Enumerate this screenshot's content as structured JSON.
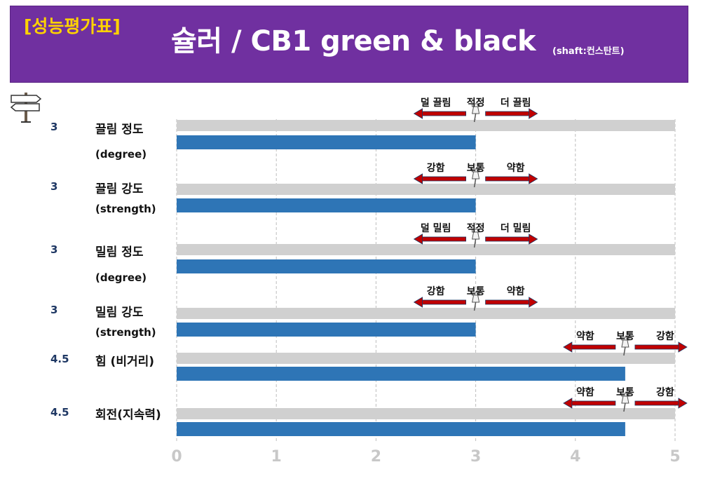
{
  "header": {
    "tag": "[성능평가표]",
    "title": "슐러 / CB1 green & black",
    "subtitle": "(shaft:컨스탄트)"
  },
  "colors": {
    "header_bg": "#7030a0",
    "tag": "#ffd200",
    "bar": "#2e75b6",
    "track": "#d0d0d0",
    "arrow": "#c00000",
    "value_label": "#1f3864"
  },
  "icons": {
    "corner": "signpost-icon",
    "marker": "pushpin-icon"
  },
  "chart_data": {
    "type": "bar",
    "orientation": "horizontal",
    "xlim": [
      0,
      5
    ],
    "ticks": [
      "0",
      "1",
      "2",
      "3",
      "4",
      "5"
    ],
    "grid": true,
    "rows": [
      {
        "value": 3,
        "value_label": "3",
        "label": "끌림 정도",
        "sublabel": "(degree)",
        "scale": {
          "left": "덜 끌림",
          "mid": "적정",
          "right": "더 끌림"
        },
        "marker": 3
      },
      {
        "value": 3,
        "value_label": "3",
        "label": "끌림 강도",
        "sublabel": "(strength)",
        "scale": {
          "left": "강함",
          "mid": "보통",
          "right": "약함"
        },
        "marker": 3
      },
      {
        "value": 3,
        "value_label": "3",
        "label": "밀림 정도",
        "sublabel": "(degree)",
        "scale": {
          "left": "덜 밀림",
          "mid": "적정",
          "right": "더 밀림"
        },
        "marker": 3
      },
      {
        "value": 3,
        "value_label": "3",
        "label": "밀림 강도",
        "sublabel": "(strength)",
        "scale": {
          "left": "강함",
          "mid": "보통",
          "right": "약함"
        },
        "marker": 3
      },
      {
        "value": 4.5,
        "value_label": "4.5",
        "label": "힘 (비거리)",
        "sublabel": "",
        "scale": {
          "left": "약함",
          "mid": "보통",
          "right": "강함"
        },
        "marker": 4.5
      },
      {
        "value": 4.5,
        "value_label": "4.5",
        "label": "회전(지속력)",
        "sublabel": "",
        "scale": {
          "left": "약함",
          "mid": "보통",
          "right": "강함"
        },
        "marker": 4.5
      }
    ]
  }
}
